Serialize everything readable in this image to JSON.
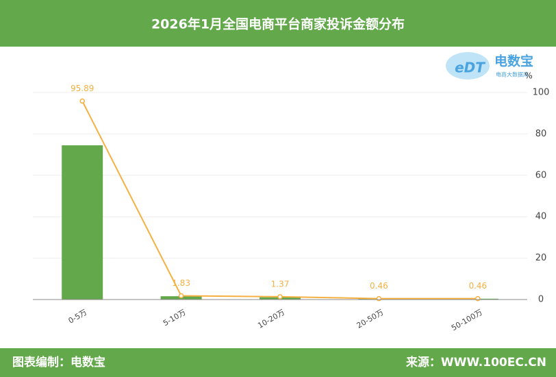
{
  "header": {
    "title": "2026年1月全国电商平台商家投诉金额分布"
  },
  "logo": {
    "mark": "eDT",
    "name": "电数宝",
    "tagline": "电商大数据库"
  },
  "chart_data": {
    "type": "bar-line",
    "categories": [
      "0-5万",
      "5-10万",
      "10-20万",
      "20-50万",
      "50-100万"
    ],
    "series": [
      {
        "type": "bar",
        "color": "#64a84c",
        "values": [
          74.5,
          1.6,
          1.1,
          0.4,
          0.4
        ]
      },
      {
        "type": "line",
        "color": "#f5b041",
        "values": [
          95.89,
          1.83,
          1.37,
          0.46,
          0.46
        ]
      }
    ],
    "y_unit": "%",
    "ylim": [
      0,
      100
    ],
    "yticks": [
      0,
      20,
      40,
      60,
      80,
      100
    ],
    "grid": true
  },
  "footer": {
    "left": "图表编制：电数宝",
    "right": "来源：WWW.100EC.CN"
  }
}
